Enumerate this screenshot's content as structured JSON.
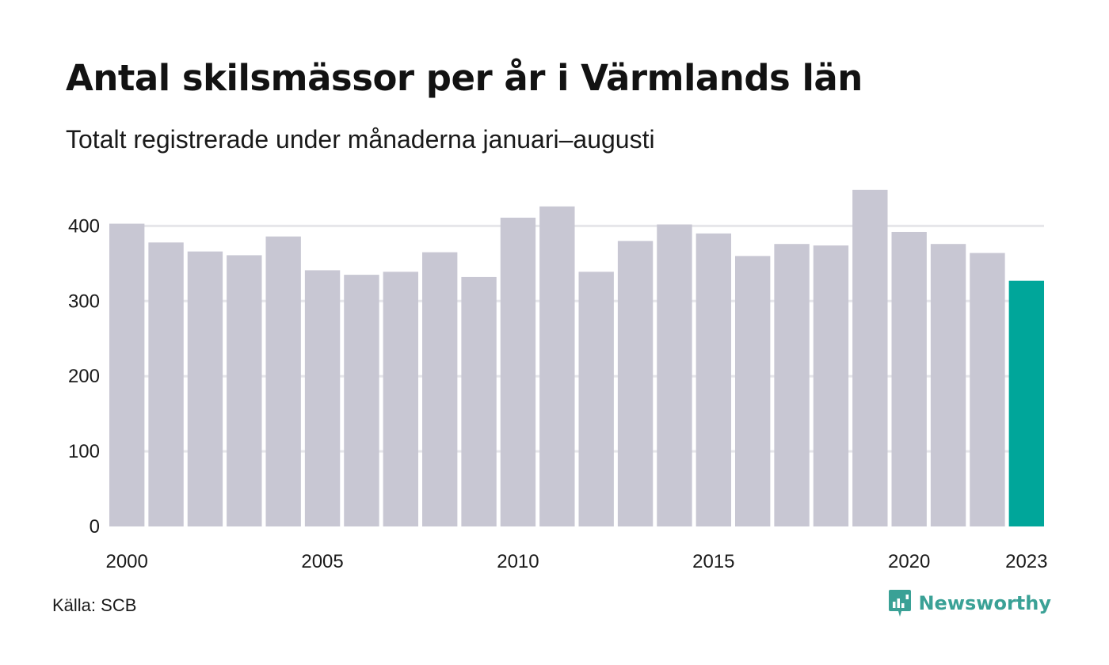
{
  "header": {
    "title": "Antal skilsmässor per år i Värmlands län",
    "subtitle": "Totalt registrerade under månaderna januari–augusti"
  },
  "footer": {
    "source": "Källa: SCB",
    "brand": "Newsworthy",
    "brand_icon": "newsworthy-logo-icon"
  },
  "colors": {
    "bar_default": "#c8c7d3",
    "bar_highlight": "#00a69a",
    "grid": "#e6e6ea",
    "brand": "#3aa196"
  },
  "chart_data": {
    "type": "bar",
    "title": "Antal skilsmässor per år i Värmlands län",
    "subtitle": "Totalt registrerade under månaderna januari–augusti",
    "xlabel": "",
    "ylabel": "",
    "categories": [
      2000,
      2001,
      2002,
      2003,
      2004,
      2005,
      2006,
      2007,
      2008,
      2009,
      2010,
      2011,
      2012,
      2013,
      2014,
      2015,
      2016,
      2017,
      2018,
      2019,
      2020,
      2021,
      2022,
      2023
    ],
    "values": [
      403,
      378,
      366,
      361,
      386,
      341,
      335,
      339,
      365,
      332,
      411,
      426,
      339,
      380,
      402,
      390,
      360,
      376,
      374,
      448,
      392,
      376,
      364,
      327
    ],
    "highlight": [
      2023
    ],
    "x_tick_labels": [
      "2000",
      "2005",
      "2010",
      "2015",
      "2020",
      "2023"
    ],
    "y_ticks": [
      0,
      100,
      200,
      300,
      400
    ],
    "ylim": [
      0,
      450
    ],
    "grid": "horizontal",
    "legend": "none"
  }
}
